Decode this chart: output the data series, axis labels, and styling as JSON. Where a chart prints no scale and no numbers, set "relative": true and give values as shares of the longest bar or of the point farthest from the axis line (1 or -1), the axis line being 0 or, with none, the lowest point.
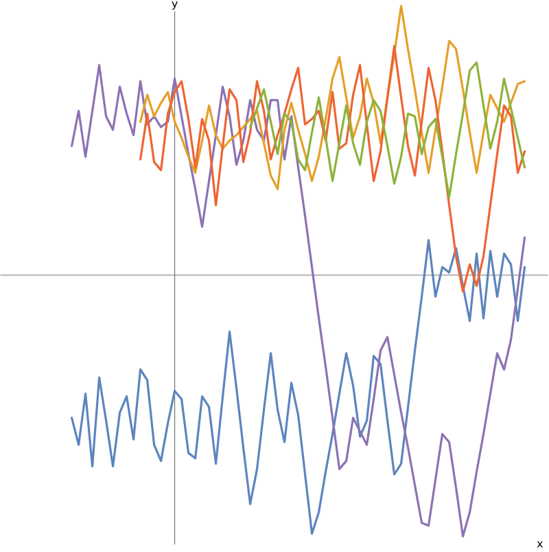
{
  "chart_data": {
    "type": "line",
    "relative": true,
    "xlabel": "x",
    "ylabel": "y",
    "categories": [
      null,
      null,
      null,
      null,
      null,
      null,
      null,
      null,
      null,
      null,
      null,
      null,
      null,
      null,
      null,
      null,
      null,
      null,
      null,
      null,
      null,
      null,
      null,
      null,
      null,
      null,
      null,
      null,
      null,
      null,
      null,
      null,
      null,
      null,
      null,
      null,
      null,
      null,
      null,
      null,
      null,
      null,
      null,
      null,
      null,
      null,
      null,
      null,
      null,
      null,
      null,
      null,
      null,
      null,
      null,
      null,
      null,
      null,
      null,
      null,
      null,
      null,
      null,
      null,
      null,
      null,
      null
    ],
    "series": [
      {
        "color": "#5d85bd",
        "values": [
          -0.53,
          -0.63,
          -0.44,
          -0.71,
          -0.38,
          -0.54,
          -0.71,
          -0.51,
          -0.45,
          -0.61,
          -0.35,
          -0.39,
          -0.63,
          -0.69,
          -0.55,
          -0.43,
          -0.46,
          -0.66,
          -0.68,
          -0.45,
          -0.49,
          -0.7,
          -0.45,
          -0.21,
          -0.42,
          -0.64,
          -0.85,
          -0.72,
          -0.5,
          -0.29,
          -0.5,
          -0.62,
          -0.4,
          -0.52,
          -0.74,
          -0.96,
          -0.88,
          -0.73,
          -0.59,
          -0.44,
          -0.29,
          -0.41,
          -0.6,
          -0.54,
          -0.3,
          -0.33,
          -0.54,
          -0.74,
          -0.7,
          -0.49,
          -0.28,
          -0.08,
          0.13,
          -0.08,
          0.03,
          0.01,
          0.1,
          -0.04,
          -0.17,
          0.08,
          -0.16,
          0.09,
          -0.08,
          0.08,
          0.04,
          -0.17,
          0.03
        ]
      },
      {
        "color": "#8c72b4",
        "values": [
          0.48,
          0.61,
          0.44,
          0.61,
          0.78,
          0.59,
          0.54,
          0.7,
          0.6,
          0.52,
          0.72,
          0.56,
          0.59,
          0.55,
          0.57,
          0.73,
          0.59,
          0.45,
          0.32,
          0.18,
          0.35,
          0.52,
          0.7,
          0.59,
          0.41,
          0.5,
          0.65,
          0.54,
          0.5,
          0.65,
          0.65,
          0.43,
          0.59,
          0.4,
          0.22,
          0.03,
          -0.16,
          -0.34,
          -0.53,
          -0.72,
          -0.69,
          -0.53,
          -0.58,
          -0.63,
          -0.46,
          -0.28,
          -0.23,
          -0.37,
          -0.51,
          -0.64,
          -0.78,
          -0.92,
          -0.93,
          -0.76,
          -0.59,
          -0.62,
          -0.79,
          -0.97,
          -0.88,
          -0.73,
          -0.59,
          -0.44,
          -0.29,
          -0.35,
          -0.24,
          -0.05,
          0.14
        ]
      },
      {
        "color": "#e5a02a",
        "values": [
          null,
          null,
          null,
          null,
          null,
          null,
          null,
          null,
          null,
          null,
          0.57,
          0.67,
          0.59,
          0.64,
          0.68,
          0.57,
          0.51,
          0.44,
          0.38,
          0.5,
          0.63,
          0.52,
          0.47,
          0.5,
          0.52,
          0.55,
          0.58,
          0.61,
          0.49,
          0.37,
          0.32,
          0.54,
          0.64,
          0.54,
          0.45,
          0.35,
          0.44,
          0.58,
          0.73,
          0.81,
          0.66,
          0.51,
          0.59,
          0.73,
          0.64,
          0.49,
          0.66,
          0.82,
          1,
          0.84,
          0.69,
          0.53,
          0.38,
          0.54,
          0.7,
          0.87,
          0.84,
          0.69,
          0.53,
          0.38,
          0.53,
          0.67,
          0.62,
          0.57,
          0.64,
          0.71,
          0.72
        ]
      },
      {
        "color": "#ee6433",
        "values": [
          null,
          null,
          null,
          null,
          null,
          null,
          null,
          null,
          null,
          null,
          0.43,
          0.6,
          0.42,
          0.39,
          0.6,
          0.68,
          0.72,
          0.58,
          0.4,
          0.58,
          0.5,
          0.26,
          0.48,
          0.69,
          0.65,
          0.42,
          0.53,
          0.72,
          0.61,
          0.43,
          0.52,
          0.6,
          0.69,
          0.77,
          0.56,
          0.58,
          0.61,
          0.5,
          0.68,
          0.47,
          0.49,
          0.67,
          0.78,
          0.56,
          0.35,
          0.46,
          0.66,
          0.85,
          0.66,
          0.48,
          0.37,
          0.57,
          0.77,
          0.65,
          0.46,
          0.26,
          0.07,
          -0.06,
          0.04,
          -0.04,
          0.07,
          0.26,
          0.45,
          0.63,
          0.59,
          0.38,
          0.46
        ]
      },
      {
        "color": "#8db33a",
        "values": [
          null,
          null,
          null,
          null,
          null,
          null,
          null,
          null,
          null,
          null,
          null,
          null,
          null,
          null,
          null,
          null,
          null,
          null,
          null,
          null,
          null,
          null,
          null,
          null,
          null,
          null,
          0.55,
          0.62,
          0.69,
          0.57,
          0.45,
          0.6,
          0.57,
          0.43,
          0.39,
          0.53,
          0.66,
          0.51,
          0.35,
          0.49,
          0.63,
          0.49,
          0.41,
          0.57,
          0.65,
          0.61,
          0.48,
          0.34,
          0.44,
          0.6,
          0.59,
          0.45,
          0.55,
          0.58,
          0.44,
          0.29,
          0.45,
          0.6,
          0.76,
          0.79,
          0.63,
          0.47,
          0.57,
          0.73,
          0.62,
          0.51,
          0.4
        ]
      }
    ]
  }
}
